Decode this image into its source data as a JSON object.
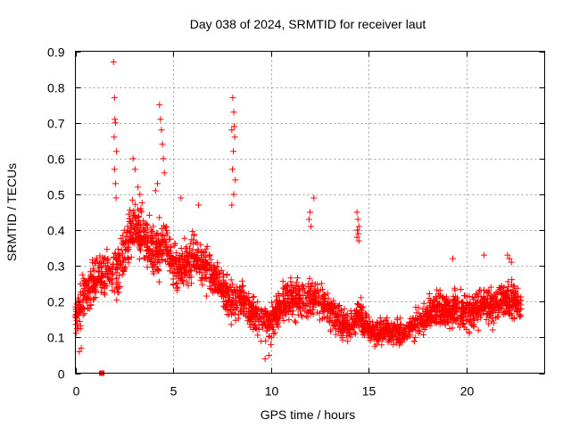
{
  "chart_data": {
    "type": "scatter",
    "title": "Day 038 of 2024, SRMTID for receiver laut",
    "xlabel": "GPS time / hours",
    "ylabel": "SRMTID / TECUs",
    "xlim": [
      0,
      24
    ],
    "ylim": [
      0,
      0.9
    ],
    "xticks": [
      0,
      5,
      10,
      15,
      20
    ],
    "yticks": [
      0,
      0.1,
      0.2,
      0.3,
      0.4,
      0.5,
      0.6,
      0.7,
      0.8,
      0.9
    ],
    "xtick_labels": [
      "0",
      "5",
      "10",
      "15",
      "20"
    ],
    "ytick_labels": [
      "0",
      "0.1",
      "0.2",
      "0.3",
      "0.4",
      "0.5",
      "0.6",
      "0.7",
      "0.8",
      "0.9"
    ],
    "grid": true,
    "marker": "plus",
    "color": "#ff0000",
    "series": [
      {
        "name": "SRMTID",
        "trend": [
          [
            0.0,
            0.16,
            0.05
          ],
          [
            0.5,
            0.22,
            0.06
          ],
          [
            1.0,
            0.26,
            0.06
          ],
          [
            1.5,
            0.28,
            0.06
          ],
          [
            2.0,
            0.27,
            0.07
          ],
          [
            2.5,
            0.34,
            0.07
          ],
          [
            3.0,
            0.42,
            0.07
          ],
          [
            3.5,
            0.38,
            0.07
          ],
          [
            4.0,
            0.33,
            0.07
          ],
          [
            4.5,
            0.36,
            0.07
          ],
          [
            5.0,
            0.31,
            0.06
          ],
          [
            5.5,
            0.29,
            0.06
          ],
          [
            6.0,
            0.33,
            0.06
          ],
          [
            6.5,
            0.3,
            0.06
          ],
          [
            7.0,
            0.28,
            0.06
          ],
          [
            7.5,
            0.24,
            0.05
          ],
          [
            8.0,
            0.2,
            0.05
          ],
          [
            8.5,
            0.21,
            0.05
          ],
          [
            9.0,
            0.17,
            0.05
          ],
          [
            9.5,
            0.15,
            0.05
          ],
          [
            10.0,
            0.14,
            0.05
          ],
          [
            10.5,
            0.19,
            0.05
          ],
          [
            11.0,
            0.21,
            0.05
          ],
          [
            11.5,
            0.19,
            0.05
          ],
          [
            12.0,
            0.22,
            0.05
          ],
          [
            12.5,
            0.2,
            0.05
          ],
          [
            13.0,
            0.18,
            0.05
          ],
          [
            13.5,
            0.15,
            0.04
          ],
          [
            14.0,
            0.13,
            0.04
          ],
          [
            14.5,
            0.17,
            0.04
          ],
          [
            15.0,
            0.12,
            0.03
          ],
          [
            15.5,
            0.11,
            0.03
          ],
          [
            16.0,
            0.12,
            0.03
          ],
          [
            16.5,
            0.11,
            0.03
          ],
          [
            17.0,
            0.12,
            0.03
          ],
          [
            17.5,
            0.14,
            0.04
          ],
          [
            18.0,
            0.16,
            0.04
          ],
          [
            18.5,
            0.18,
            0.04
          ],
          [
            19.0,
            0.17,
            0.04
          ],
          [
            19.5,
            0.18,
            0.05
          ],
          [
            20.0,
            0.17,
            0.05
          ],
          [
            20.5,
            0.18,
            0.05
          ],
          [
            21.0,
            0.19,
            0.05
          ],
          [
            21.5,
            0.2,
            0.05
          ],
          [
            22.0,
            0.21,
            0.05
          ],
          [
            22.5,
            0.2,
            0.05
          ],
          [
            22.8,
            0.18,
            0.04
          ]
        ],
        "spikes": [
          [
            1.95,
            0.87
          ],
          [
            2.0,
            0.77
          ],
          [
            2.02,
            0.71
          ],
          [
            2.05,
            0.7
          ],
          [
            1.98,
            0.66
          ],
          [
            2.1,
            0.62
          ],
          [
            2.0,
            0.57
          ],
          [
            2.05,
            0.53
          ],
          [
            2.08,
            0.49
          ],
          [
            2.95,
            0.6
          ],
          [
            3.05,
            0.57
          ],
          [
            3.2,
            0.52
          ],
          [
            3.3,
            0.5
          ],
          [
            4.3,
            0.75
          ],
          [
            4.35,
            0.71
          ],
          [
            4.4,
            0.68
          ],
          [
            4.45,
            0.64
          ],
          [
            4.5,
            0.6
          ],
          [
            4.55,
            0.56
          ],
          [
            4.2,
            0.53
          ],
          [
            4.1,
            0.51
          ],
          [
            5.4,
            0.49
          ],
          [
            6.3,
            0.47
          ],
          [
            8.05,
            0.77
          ],
          [
            8.1,
            0.73
          ],
          [
            8.12,
            0.69
          ],
          [
            8.0,
            0.68
          ],
          [
            8.15,
            0.66
          ],
          [
            8.08,
            0.62
          ],
          [
            8.03,
            0.57
          ],
          [
            8.18,
            0.54
          ],
          [
            8.1,
            0.5
          ],
          [
            8.0,
            0.47
          ],
          [
            12.0,
            0.45
          ],
          [
            11.95,
            0.43
          ],
          [
            12.05,
            0.41
          ],
          [
            12.2,
            0.49
          ],
          [
            14.4,
            0.45
          ],
          [
            14.45,
            0.43
          ],
          [
            14.5,
            0.41
          ],
          [
            14.42,
            0.4
          ],
          [
            14.48,
            0.39
          ],
          [
            14.4,
            0.38
          ],
          [
            14.5,
            0.37
          ],
          [
            19.3,
            0.32
          ],
          [
            22.1,
            0.33
          ],
          [
            22.2,
            0.32
          ],
          [
            22.3,
            0.31
          ],
          [
            20.9,
            0.33
          ],
          [
            9.7,
            0.04
          ],
          [
            9.9,
            0.05
          ],
          [
            0.2,
            0.06
          ],
          [
            0.3,
            0.07
          ]
        ],
        "outlier": [
          1.35,
          0.0
        ]
      }
    ]
  }
}
